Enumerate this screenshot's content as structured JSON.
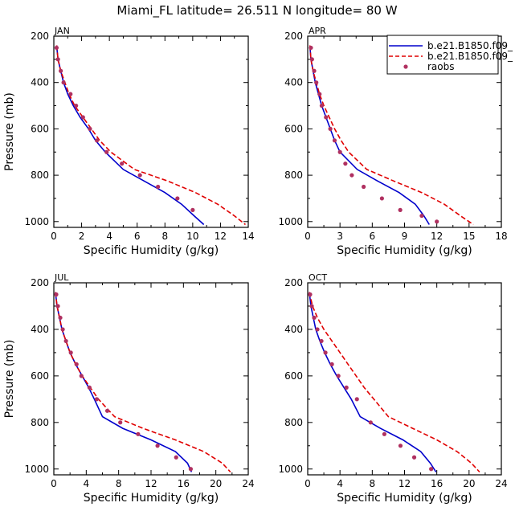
{
  "figure": {
    "title": "Miami_FL  latitude= 26.511 N longitude= 80 W"
  },
  "legend": {
    "placement": "top-right of APR panel",
    "entries": [
      {
        "label": "b.e21.B1850.f09_",
        "style": "solid",
        "color": "#0000cc"
      },
      {
        "label": "b.e21.B1850.f09_",
        "style": "dashed",
        "color": "#e00000"
      },
      {
        "label": "raobs",
        "style": "marker",
        "color": "#b03060"
      }
    ]
  },
  "colors": {
    "model_a": "#0000cc",
    "model_b": "#e00000",
    "raobs": "#b03060"
  },
  "chart_data": [
    {
      "type": "line",
      "panel": "JAN",
      "xlabel": "Specific Humidity (g/kg)",
      "ylabel": "Pressure (mb)",
      "xlim": [
        0,
        14
      ],
      "ylim": [
        200,
        1025
      ],
      "y_inverted": true,
      "xticks": [
        0,
        2,
        4,
        6,
        8,
        10,
        12,
        14
      ],
      "yticks": [
        200,
        400,
        600,
        800,
        1000
      ],
      "series": [
        {
          "style": "solid",
          "x": [
            0.2,
            0.3,
            0.5,
            0.7,
            1.0,
            1.4,
            1.9,
            2.5,
            3.0,
            3.7,
            5.0,
            6.5,
            8.0,
            9.2,
            10.1,
            10.8
          ],
          "y": [
            240,
            300,
            350,
            400,
            450,
            500,
            550,
            600,
            650,
            700,
            775,
            825,
            875,
            925,
            975,
            1013
          ]
        },
        {
          "style": "dashed",
          "x": [
            0.2,
            0.3,
            0.5,
            0.8,
            1.1,
            1.5,
            2.1,
            2.7,
            3.3,
            4.1,
            5.8,
            8.2,
            10.2,
            11.8,
            13.0,
            13.8
          ],
          "y": [
            240,
            300,
            350,
            400,
            450,
            500,
            550,
            600,
            650,
            700,
            775,
            825,
            875,
            925,
            975,
            1013
          ]
        },
        {
          "style": "marker",
          "x": [
            0.2,
            0.3,
            0.5,
            0.7,
            1.2,
            1.6,
            2.1,
            2.6,
            3.1,
            3.8,
            4.9,
            6.2,
            7.5,
            8.9,
            10.0
          ],
          "y": [
            250,
            300,
            350,
            400,
            450,
            500,
            550,
            600,
            650,
            700,
            750,
            800,
            850,
            900,
            950
          ]
        }
      ]
    },
    {
      "type": "line",
      "panel": "APR",
      "xlabel": "Specific Humidity (g/kg)",
      "ylabel": "",
      "xlim": [
        0,
        18
      ],
      "ylim": [
        200,
        1025
      ],
      "y_inverted": true,
      "xticks": [
        0,
        3,
        6,
        9,
        12,
        15,
        18
      ],
      "yticks": [
        200,
        400,
        600,
        800,
        1000
      ],
      "series": [
        {
          "style": "solid",
          "x": [
            0.2,
            0.3,
            0.5,
            0.7,
            1.0,
            1.3,
            1.7,
            2.1,
            2.5,
            3.0,
            4.6,
            6.5,
            8.5,
            10.0,
            10.8,
            11.3
          ],
          "y": [
            240,
            300,
            350,
            400,
            450,
            500,
            550,
            600,
            650,
            700,
            775,
            825,
            875,
            925,
            975,
            1013
          ]
        },
        {
          "style": "dashed",
          "x": [
            0.2,
            0.3,
            0.5,
            0.8,
            1.1,
            1.5,
            2.0,
            2.5,
            3.1,
            3.8,
            5.5,
            8.0,
            10.6,
            12.7,
            14.2,
            15.4
          ],
          "y": [
            240,
            300,
            350,
            400,
            450,
            500,
            550,
            600,
            650,
            700,
            775,
            825,
            875,
            925,
            975,
            1013
          ]
        },
        {
          "style": "marker",
          "x": [
            0.3,
            0.4,
            0.6,
            0.8,
            1.1,
            1.3,
            1.7,
            2.1,
            2.5,
            3.0,
            3.5,
            4.1,
            5.2,
            6.9,
            8.6,
            10.6,
            12.0
          ],
          "y": [
            250,
            300,
            350,
            400,
            450,
            500,
            550,
            600,
            650,
            700,
            750,
            800,
            850,
            900,
            950,
            975,
            1000
          ]
        }
      ]
    },
    {
      "type": "line",
      "panel": "JUL",
      "xlabel": "Specific Humidity (g/kg)",
      "ylabel": "Pressure (mb)",
      "xlim": [
        0,
        24
      ],
      "ylim": [
        200,
        1025
      ],
      "y_inverted": true,
      "xticks": [
        0,
        4,
        8,
        12,
        16,
        20,
        24
      ],
      "yticks": [
        200,
        400,
        600,
        800,
        1000
      ],
      "series": [
        {
          "style": "solid",
          "x": [
            0.2,
            0.4,
            0.7,
            1.0,
            1.5,
            2.0,
            2.7,
            3.5,
            4.3,
            5.0,
            6.0,
            8.5,
            12.0,
            15.0,
            16.5,
            17.0
          ],
          "y": [
            240,
            300,
            350,
            400,
            450,
            500,
            550,
            600,
            650,
            700,
            775,
            825,
            875,
            925,
            975,
            1013
          ]
        },
        {
          "style": "dashed",
          "x": [
            0.2,
            0.4,
            0.7,
            1.0,
            1.5,
            2.0,
            2.7,
            3.5,
            4.5,
            5.5,
            7.5,
            11.0,
            15.0,
            18.5,
            20.8,
            21.8
          ],
          "y": [
            240,
            300,
            350,
            400,
            450,
            500,
            550,
            600,
            650,
            700,
            775,
            825,
            875,
            925,
            975,
            1013
          ]
        },
        {
          "style": "marker",
          "x": [
            0.3,
            0.5,
            0.8,
            1.1,
            1.5,
            2.1,
            2.8,
            3.4,
            4.4,
            5.3,
            6.6,
            8.2,
            10.4,
            12.8,
            15.1,
            16.9
          ],
          "y": [
            250,
            300,
            350,
            400,
            450,
            500,
            550,
            600,
            650,
            700,
            750,
            800,
            850,
            900,
            950,
            1000
          ]
        }
      ]
    },
    {
      "type": "line",
      "panel": "OCT",
      "xlabel": "Specific Humidity (g/kg)",
      "ylabel": "",
      "xlim": [
        0,
        24
      ],
      "ylim": [
        200,
        1025
      ],
      "y_inverted": true,
      "xticks": [
        0,
        4,
        8,
        12,
        16,
        20,
        24
      ],
      "yticks": [
        200,
        400,
        600,
        800,
        1000
      ],
      "series": [
        {
          "style": "solid",
          "x": [
            0.2,
            0.4,
            0.7,
            1.0,
            1.5,
            2.1,
            2.8,
            3.6,
            4.5,
            5.4,
            6.5,
            9.0,
            11.8,
            14.0,
            15.2,
            15.9
          ],
          "y": [
            240,
            300,
            350,
            400,
            450,
            500,
            550,
            600,
            650,
            700,
            775,
            825,
            875,
            925,
            975,
            1013
          ]
        },
        {
          "style": "dashed",
          "x": [
            0.2,
            0.6,
            1.2,
            2.0,
            3.0,
            4.0,
            5.0,
            6.0,
            7.0,
            8.2,
            10.0,
            13.0,
            16.0,
            18.5,
            20.3,
            21.3
          ],
          "y": [
            240,
            300,
            350,
            400,
            450,
            500,
            550,
            600,
            650,
            700,
            775,
            825,
            875,
            925,
            975,
            1013
          ]
        },
        {
          "style": "marker",
          "x": [
            0.3,
            0.5,
            0.8,
            1.2,
            1.7,
            2.2,
            3.0,
            3.8,
            4.8,
            6.1,
            7.8,
            9.5,
            11.5,
            13.2,
            15.3
          ],
          "y": [
            250,
            300,
            350,
            400,
            450,
            500,
            550,
            600,
            650,
            700,
            800,
            850,
            900,
            950,
            1000
          ]
        }
      ]
    }
  ]
}
